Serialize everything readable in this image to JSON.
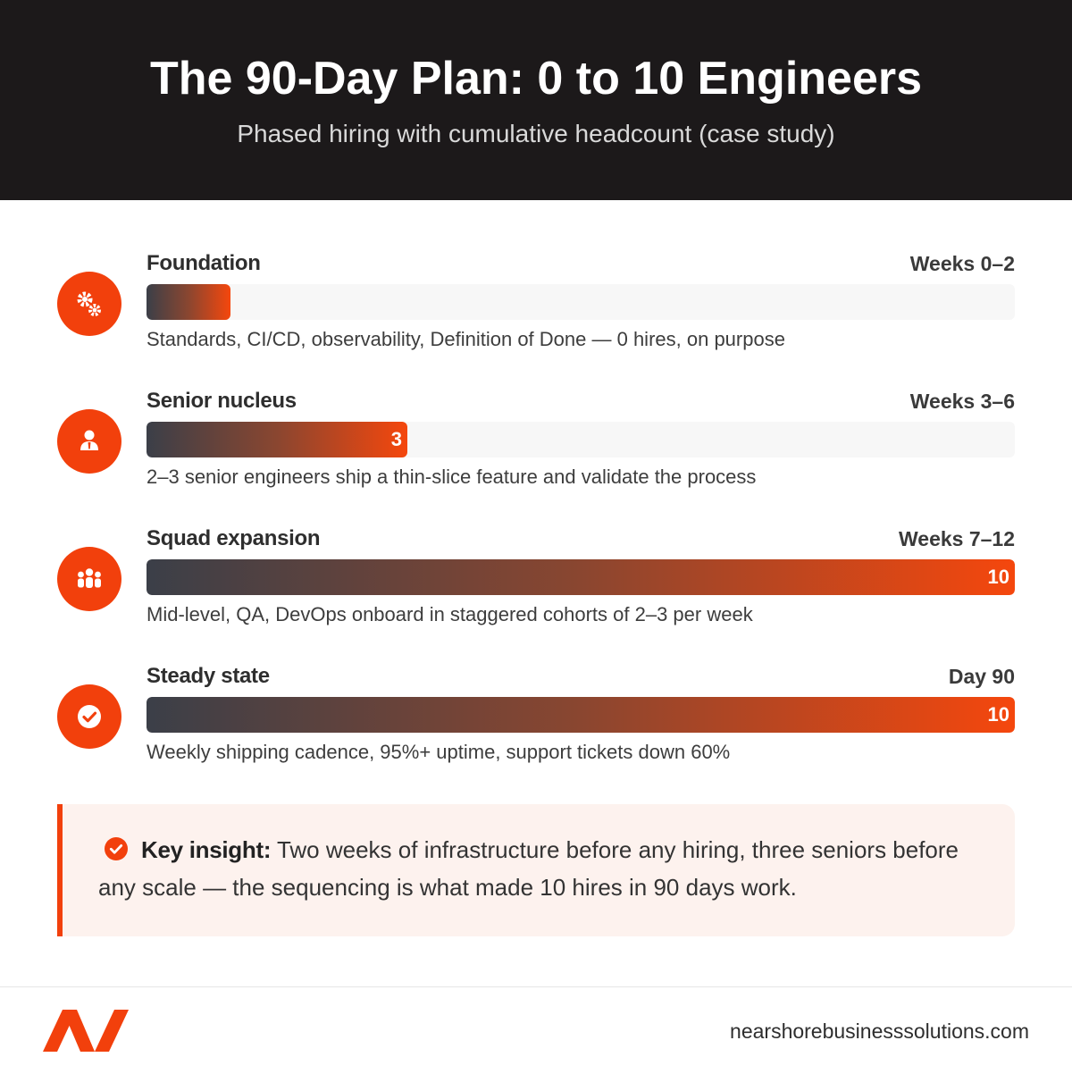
{
  "header": {
    "title": "The 90-Day Plan: 0 to 10 Engineers",
    "subtitle": "Phased hiring with cumulative headcount (case study)"
  },
  "chart_data": {
    "type": "bar",
    "title": "The 90-Day Plan: 0 to 10 Engineers",
    "subtitle": "Phased hiring with cumulative headcount (case study)",
    "categories": [
      "Foundation",
      "Senior nucleus",
      "Squad expansion",
      "Steady state"
    ],
    "timeframes": [
      "Weeks 0–2",
      "Weeks 3–6",
      "Weeks 7–12",
      "Day 90"
    ],
    "values": [
      0,
      3,
      10,
      10
    ],
    "value_labels": [
      "",
      "3",
      "10",
      "10"
    ],
    "descriptions": [
      "Standards, CI/CD, observability, Definition of Done — 0 hires, on purpose",
      "2–3 senior engineers ship a thin-slice feature and validate the process",
      "Mid-level, QA, DevOps onboard in staggered cohorts of 2–3 per week",
      "Weekly shipping cadence, 95%+ uptime, support tickets down 60%"
    ],
    "icons": [
      "gears-icon",
      "senior-person-icon",
      "team-icon",
      "check-circle-icon"
    ],
    "xlim": [
      0,
      10
    ],
    "orientation": "horizontal",
    "grid": false,
    "legend": "none"
  },
  "insight": {
    "label": "Key insight:",
    "text": " Two weeks of infrastructure before any hiring, three seniors before any scale — the sequencing is what made 10 hires in 90 days work."
  },
  "footer": {
    "domain": "nearshorebusinesssolutions.com"
  },
  "colors": {
    "accent": "#f2400c",
    "header_bg": "#1c191a",
    "bar_start": "#3b3f48",
    "bar_end": "#f5470d",
    "track": "#f7f7f7",
    "insight_bg": "#fdf2ee"
  }
}
